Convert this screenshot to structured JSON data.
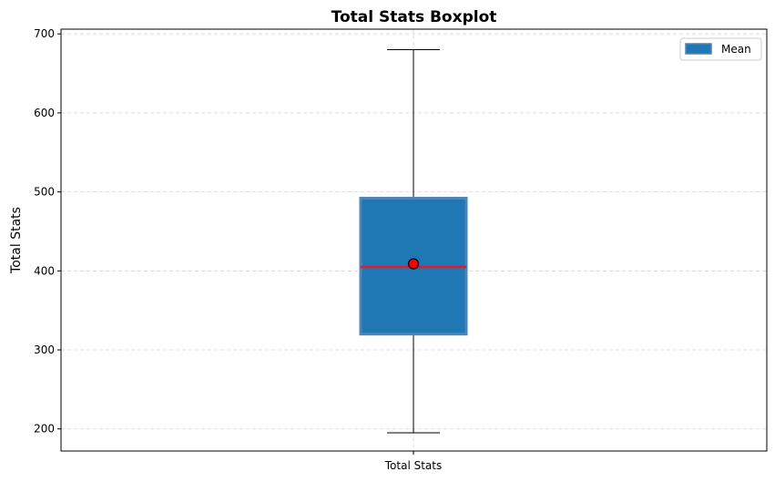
{
  "chart_data": {
    "type": "boxplot",
    "title": "Total Stats Boxplot",
    "xlabel": "",
    "ylabel": "Total Stats",
    "categories": [
      "Total Stats"
    ],
    "ylim": [
      172,
      706
    ],
    "yticks": [
      200,
      300,
      400,
      500,
      600,
      700
    ],
    "grid": true,
    "legend": {
      "placement": "top-right",
      "entries": [
        "Mean"
      ]
    },
    "box": {
      "whisker_low": 195,
      "q1": 320,
      "median": 405,
      "q3": 492,
      "whisker_high": 680,
      "mean": 409
    },
    "colors": {
      "box_fill": "#1f77b4",
      "box_edge": "#4a86b8",
      "median": "#e8172a",
      "mean_marker": "#ff0000",
      "grid": "#d3d3d3"
    }
  }
}
